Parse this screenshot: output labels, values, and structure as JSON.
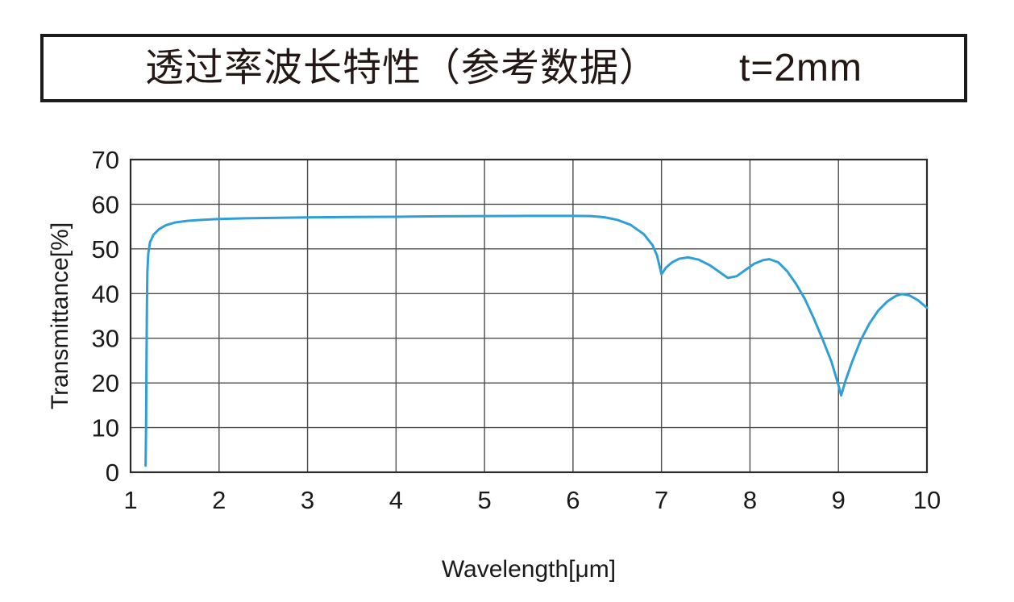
{
  "page": {
    "background": "#ffffff",
    "text_color": "#231815"
  },
  "title_box": {
    "label_cjk": "透过率波长特性（参考数据）",
    "label_condition": "t=2mm",
    "border_color": "#1c1c1c"
  },
  "chart_data": {
    "type": "line",
    "title": "透过率波长特性（参考数据） t=2mm",
    "xlabel": "Wavelength[μm]",
    "ylabel": "Transmittance[%]",
    "xlim": [
      1,
      10
    ],
    "ylim": [
      0,
      70
    ],
    "x_ticks": [
      1,
      2,
      3,
      4,
      5,
      6,
      7,
      8,
      9,
      10
    ],
    "y_ticks": [
      0,
      10,
      20,
      30,
      40,
      50,
      60,
      70
    ],
    "grid": true,
    "legend_position": "none",
    "line_color": "#2f9fd6",
    "grid_color": "#4d4d4d",
    "axis_border_color": "#2b2b2b",
    "tick_label_color": "#1a1a1a",
    "series": [
      {
        "name": "Transmittance (t=2mm)",
        "points": [
          [
            1.17,
            1.5
          ],
          [
            1.175,
            10
          ],
          [
            1.18,
            25
          ],
          [
            1.185,
            38
          ],
          [
            1.19,
            45
          ],
          [
            1.2,
            49
          ],
          [
            1.22,
            51.5
          ],
          [
            1.26,
            53.2
          ],
          [
            1.32,
            54.4
          ],
          [
            1.4,
            55.3
          ],
          [
            1.5,
            55.9
          ],
          [
            1.65,
            56.3
          ],
          [
            1.8,
            56.5
          ],
          [
            2.0,
            56.7
          ],
          [
            2.3,
            56.85
          ],
          [
            2.6,
            56.95
          ],
          [
            3.0,
            57.05
          ],
          [
            3.5,
            57.15
          ],
          [
            4.0,
            57.2
          ],
          [
            4.5,
            57.3
          ],
          [
            5.0,
            57.35
          ],
          [
            5.5,
            57.4
          ],
          [
            6.0,
            57.4
          ],
          [
            6.2,
            57.35
          ],
          [
            6.35,
            57.1
          ],
          [
            6.5,
            56.5
          ],
          [
            6.65,
            55.4
          ],
          [
            6.8,
            53.3
          ],
          [
            6.9,
            50.8
          ],
          [
            6.95,
            48.5
          ],
          [
            7.0,
            44.3
          ],
          [
            7.05,
            45.8
          ],
          [
            7.12,
            47.0
          ],
          [
            7.2,
            47.8
          ],
          [
            7.3,
            48.1
          ],
          [
            7.42,
            47.6
          ],
          [
            7.55,
            46.3
          ],
          [
            7.65,
            44.9
          ],
          [
            7.75,
            43.5
          ],
          [
            7.85,
            43.9
          ],
          [
            7.95,
            45.3
          ],
          [
            8.05,
            46.7
          ],
          [
            8.15,
            47.5
          ],
          [
            8.22,
            47.7
          ],
          [
            8.32,
            47.0
          ],
          [
            8.42,
            45.0
          ],
          [
            8.52,
            42.2
          ],
          [
            8.62,
            38.8
          ],
          [
            8.72,
            34.5
          ],
          [
            8.82,
            29.8
          ],
          [
            8.92,
            24.8
          ],
          [
            9.0,
            19.5
          ],
          [
            9.03,
            17.2
          ],
          [
            9.08,
            20.5
          ],
          [
            9.15,
            24.5
          ],
          [
            9.25,
            29.5
          ],
          [
            9.35,
            33.3
          ],
          [
            9.45,
            36.2
          ],
          [
            9.55,
            38.2
          ],
          [
            9.65,
            39.5
          ],
          [
            9.72,
            39.9
          ],
          [
            9.8,
            39.6
          ],
          [
            9.9,
            38.5
          ],
          [
            10.0,
            36.8
          ]
        ]
      }
    ]
  }
}
